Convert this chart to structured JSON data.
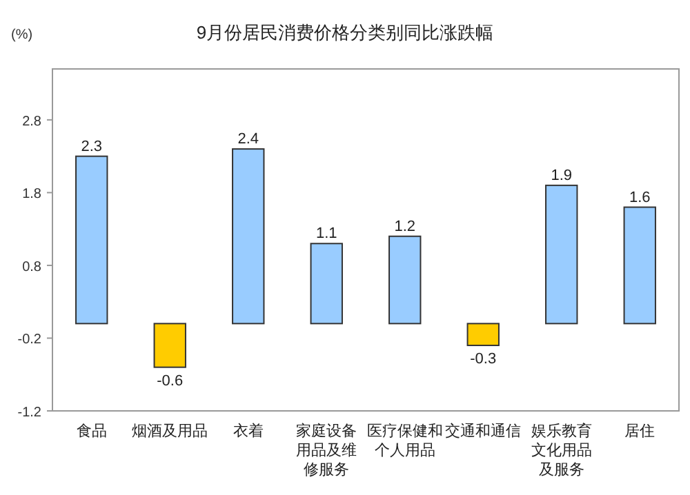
{
  "chart_data": {
    "type": "bar",
    "title": "9月份居民消费价格分类别同比涨跌幅",
    "ylabel": "(%)",
    "categories": [
      "食品",
      "烟酒及用品",
      "衣着",
      "家庭设备用品及维修服务",
      "医疗保健和个人用品",
      "交通和通信",
      "娱乐教育文化用品及服务",
      "居住"
    ],
    "values": [
      2.3,
      -0.6,
      2.4,
      1.1,
      1.2,
      -0.3,
      1.9,
      1.6
    ],
    "colors": [
      "#99ccff",
      "#ffcc00",
      "#99ccff",
      "#99ccff",
      "#99ccff",
      "#ffcc00",
      "#99ccff",
      "#99ccff"
    ],
    "ylim": [
      -1.2,
      3.5
    ],
    "yticks": [
      -1.2,
      -0.2,
      0.8,
      1.8,
      2.8
    ],
    "data_labels": true,
    "grid": false
  }
}
